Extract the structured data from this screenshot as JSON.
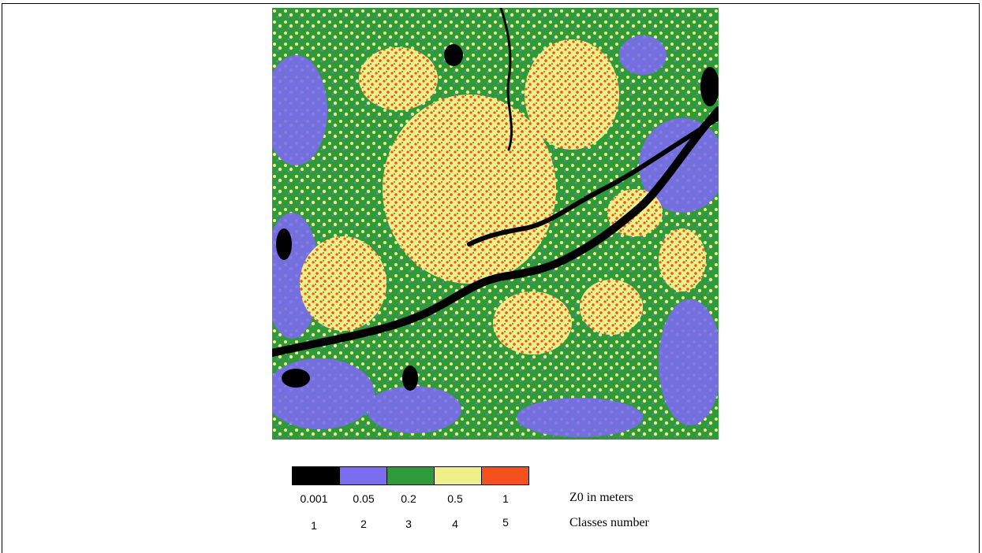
{
  "legend": {
    "values": [
      "0.001",
      "0.05",
      "0.2",
      "0.5",
      "1"
    ],
    "classes": [
      "1",
      "2",
      "3",
      "4",
      "5"
    ],
    "values_caption": "Z0 in meters",
    "classes_caption": "Classes number",
    "colors": [
      "#000000",
      "#7b6cf0",
      "#2e9a3a",
      "#f0f08a",
      "#f4511e"
    ]
  },
  "map": {
    "colors": {
      "class1": "#000000",
      "class2": "#7b6cf0",
      "class3": "#2e9a3a",
      "class4": "#f0f08a",
      "class5": "#f4511e"
    }
  }
}
